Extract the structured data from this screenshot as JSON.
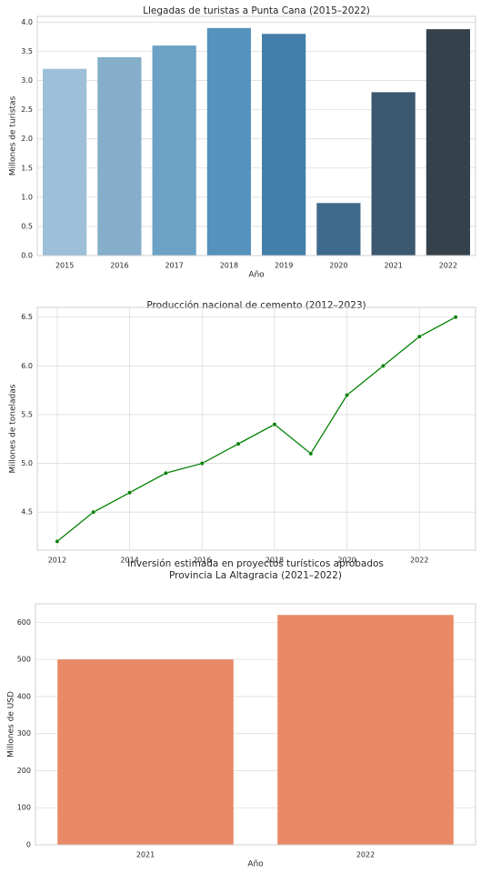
{
  "chart_data": [
    {
      "type": "bar",
      "title": "Llegadas de turistas a Punta Cana (2015–2022)",
      "xlabel": "Año",
      "ylabel": "Millones de turistas",
      "categories": [
        "2015",
        "2016",
        "2017",
        "2018",
        "2019",
        "2020",
        "2021",
        "2022"
      ],
      "values": [
        3.2,
        3.4,
        3.6,
        3.9,
        3.8,
        0.9,
        2.8,
        3.88
      ],
      "ylim": [
        0,
        4.1
      ],
      "yticks": [
        "0.0",
        "0.5",
        "1.0",
        "1.5",
        "2.0",
        "2.5",
        "3.0",
        "3.5",
        "4.0"
      ],
      "colors": [
        "#9dbfd8",
        "#84aeca",
        "#6ba2c5",
        "#5592bd",
        "#447eaa",
        "#3f6a8d",
        "#3c5770",
        "#36424b"
      ],
      "grid": true
    },
    {
      "type": "line",
      "title": "Producción nacional de cemento (2012–2023)",
      "xlabel": "",
      "ylabel": "Millones de toneladas",
      "x": [
        2012,
        2013,
        2014,
        2015,
        2016,
        2017,
        2018,
        2019,
        2020,
        2021,
        2022,
        2023
      ],
      "values": [
        4.2,
        4.5,
        4.7,
        4.9,
        5.0,
        5.2,
        5.4,
        5.1,
        5.7,
        6.0,
        6.3,
        6.5
      ],
      "xlim": [
        2011.45,
        2023.55
      ],
      "ylim": [
        4.11,
        6.6
      ],
      "xticks": [
        "2012",
        "2014",
        "2016",
        "2018",
        "2020",
        "2022"
      ],
      "yticks": [
        "4.5",
        "5.0",
        "5.5",
        "6.0",
        "6.5"
      ],
      "color": "#008000",
      "grid": true
    },
    {
      "type": "bar",
      "title": "Inversión estimada en proyectos turísticos aprobados\nProvincia La Altagracia (2021–2022)",
      "xlabel": "Año",
      "ylabel": "Millones de USD",
      "categories": [
        "2021",
        "2022"
      ],
      "values": [
        500,
        620
      ],
      "ylim": [
        0,
        650
      ],
      "yticks": [
        "0",
        "100",
        "200",
        "300",
        "400",
        "500",
        "600"
      ],
      "colors": [
        "#e98a66",
        "#e98a66"
      ],
      "grid": true
    }
  ]
}
